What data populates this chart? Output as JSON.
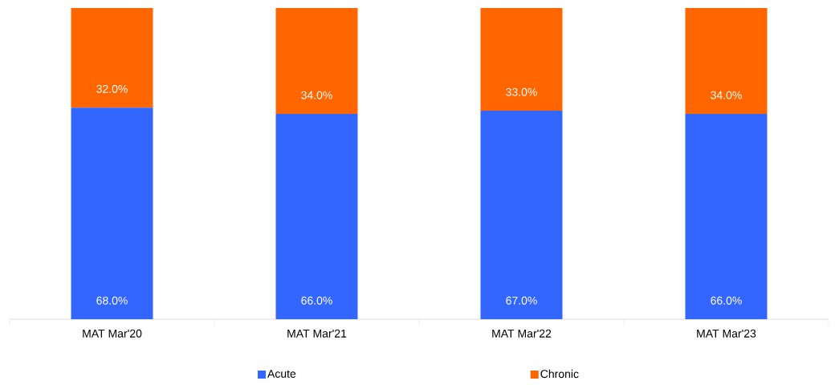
{
  "chart_data": {
    "type": "bar",
    "stacked": true,
    "categories": [
      "MAT Mar'20",
      "MAT Mar'21",
      "MAT Mar'22",
      "MAT Mar'23"
    ],
    "series": [
      {
        "name": "Acute",
        "color": "#3366ff",
        "values": [
          68,
          66,
          67,
          66
        ],
        "value_labels": [
          "68.0%",
          "66.0%",
          "67.0%",
          "66.0%"
        ]
      },
      {
        "name": "Chronic",
        "color": "#ff6600",
        "values": [
          32,
          34,
          33,
          34
        ],
        "value_labels": [
          "32.0%",
          "34.0%",
          "33.0%",
          "34.0%"
        ]
      }
    ],
    "legend": "bottom"
  }
}
